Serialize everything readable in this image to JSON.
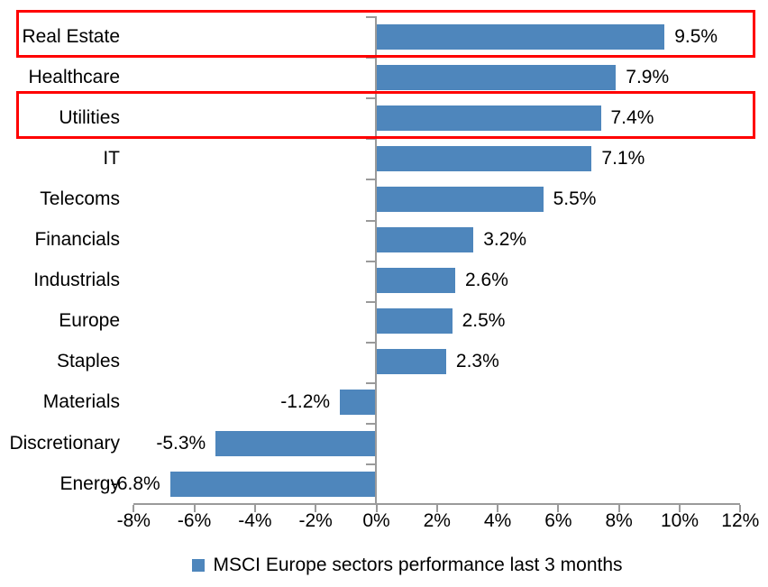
{
  "chart_data": {
    "type": "bar",
    "orientation": "horizontal",
    "title": "",
    "xlabel": "",
    "ylabel": "",
    "categories": [
      "Real Estate",
      "Healthcare",
      "Utilities",
      "IT",
      "Telecoms",
      "Financials",
      "Industrials",
      "Europe",
      "Staples",
      "Materials",
      "Discretionary",
      "Energy"
    ],
    "values": [
      9.5,
      7.9,
      7.4,
      7.1,
      5.5,
      3.2,
      2.6,
      2.5,
      2.3,
      -1.2,
      -5.3,
      -6.8
    ],
    "data_labels": [
      "9.5%",
      "7.9%",
      "7.4%",
      "7.1%",
      "5.5%",
      "3.2%",
      "2.6%",
      "2.5%",
      "2.3%",
      "-1.2%",
      "-5.3%",
      "-6.8%"
    ],
    "x_tick_values": [
      -8,
      -6,
      -4,
      -2,
      0,
      2,
      4,
      6,
      8,
      10,
      12
    ],
    "x_tick_labels": [
      "-8%",
      "-6%",
      "-4%",
      "-2%",
      "0%",
      "2%",
      "4%",
      "6%",
      "8%",
      "10%",
      "12%"
    ],
    "xlim": [
      -8,
      12
    ],
    "grid": false,
    "legend": "MSCI Europe sectors performance last 3 months",
    "legend_position": "bottom",
    "bar_color": "#4E86BC",
    "axis_color": "#9a9a9a",
    "highlight_color": "#FF0000",
    "highlighted_categories": [
      "Real Estate",
      "Utilities"
    ],
    "highlighted_indices": [
      0,
      2
    ]
  }
}
